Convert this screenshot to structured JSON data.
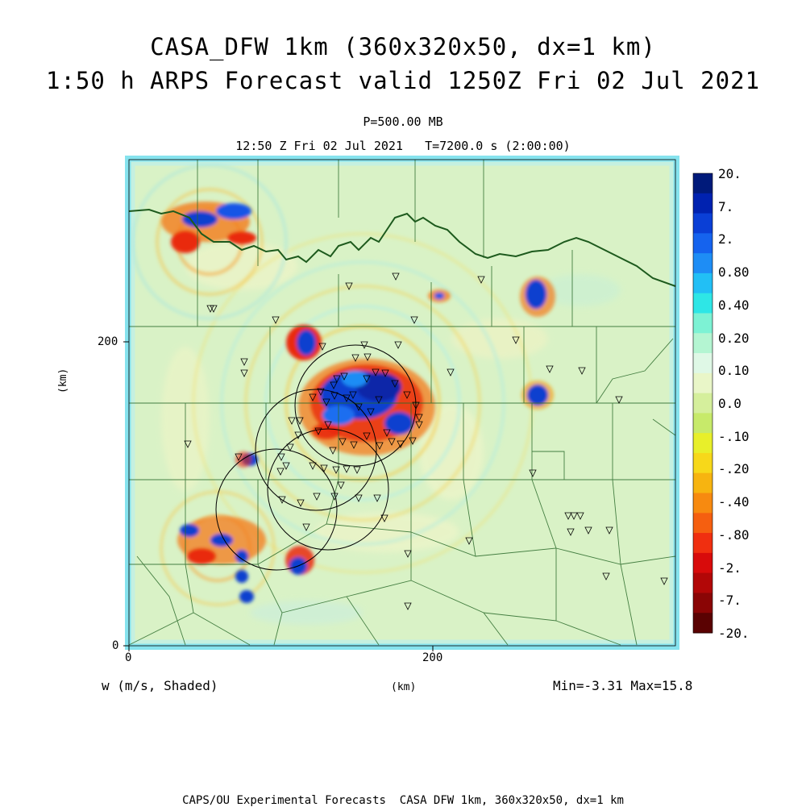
{
  "titles": {
    "line1": "CASA_DFW 1km (360x320x50, dx=1 km)",
    "line2": "1:50 h ARPS Forecast valid 1250Z Fri 02 Jul 2021",
    "level": "P=500.00 MB",
    "timeinfo": "12:50 Z Fri 02 Jul 2021   T=7200.0 s (2:00:00)"
  },
  "axes": {
    "x_unit": "(km)",
    "y_unit": "(km)",
    "x_ticks": [
      "0",
      "200"
    ],
    "y_ticks": [
      "0",
      "200"
    ],
    "x_range": [
      0,
      360
    ],
    "y_range": [
      0,
      320
    ]
  },
  "field": {
    "label": "w (m/s, Shaded)",
    "minmax": "Min=-3.31 Max=15.8"
  },
  "colorbar": {
    "labels": [
      "20.",
      "7.",
      "2.",
      "0.80",
      "0.40",
      "0.20",
      "0.10",
      "0.0",
      "-.10",
      "-.20",
      "-.40",
      "-.80",
      "-2.",
      "-7.",
      "-20."
    ],
    "colors": [
      "#001a7a",
      "#0022b0",
      "#0a3fd6",
      "#1563ee",
      "#1e8df5",
      "#22bff5",
      "#2ee6e6",
      "#7df2d4",
      "#b4f5d2",
      "#dff8e6",
      "#e9f6c8",
      "#d5ef9c",
      "#c7ea6a",
      "#e8ef2a",
      "#f7d81a",
      "#f7b410",
      "#f78a10",
      "#f55f10",
      "#f02f10",
      "#d80b0b",
      "#b20707",
      "#8a0505",
      "#5a0202"
    ]
  },
  "stations_note": "",
  "footer": "CAPS/OU Experimental Forecasts  CASA DFW 1km, 360x320x50, dx=1 km"
}
